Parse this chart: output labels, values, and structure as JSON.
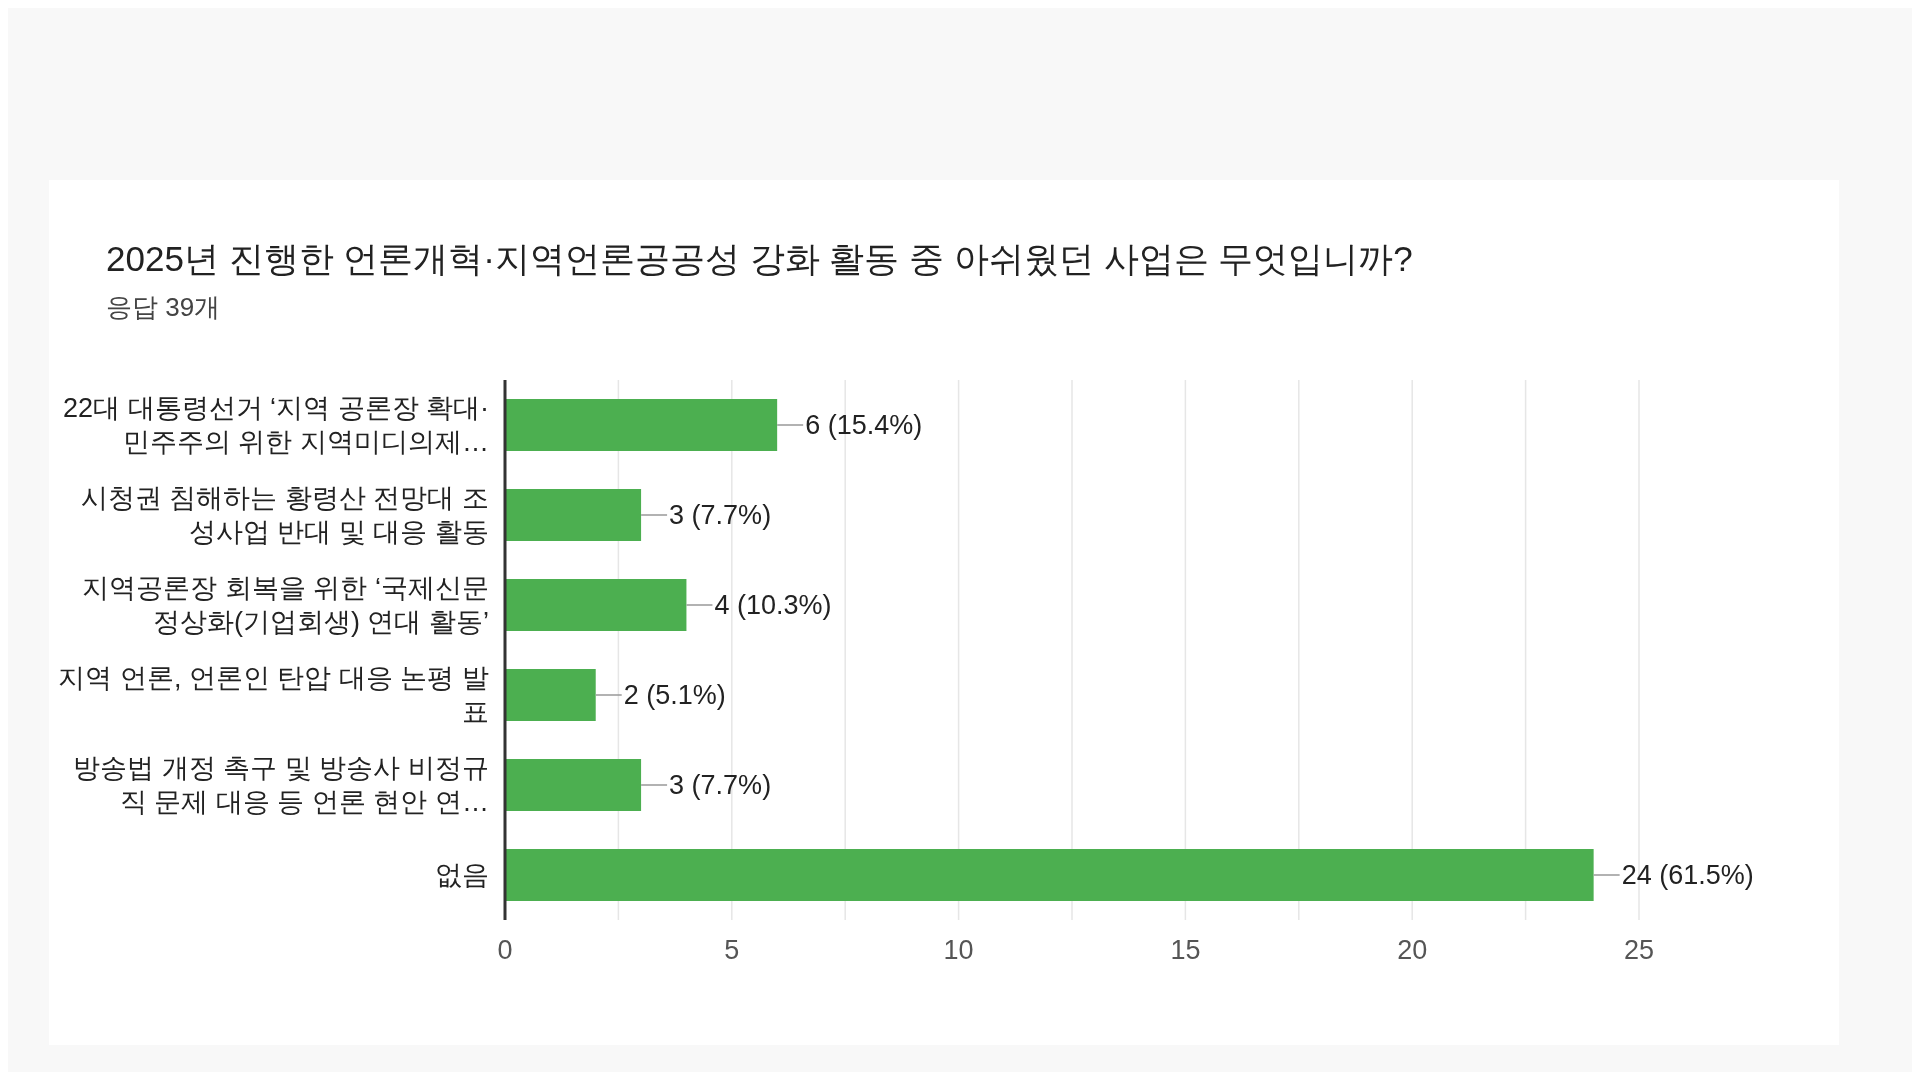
{
  "chart_data": {
    "type": "bar",
    "orientation": "horizontal",
    "title": "2025년 진행한 언론개혁·지역언론공공성 강화 활동 중 아쉬웠던 사업은 무엇입니까?",
    "subtitle": "응답 39개",
    "categories": [
      "22대 대통령선거 ‘지역 공론장 확대·민주주의 위한 지역미디의제…",
      "시청권 침해하는 황령산 전망대 조성사업 반대 및 대응 활동",
      "지역공론장 회복을 위한 ‘국제신문 정상화(기업회생) 연대 활동’",
      "지역 언론, 언론인 탄압 대응 논평 발표",
      "방송법 개정 촉구 및 방송사 비정규직 문제 대응 등 언론 현안 연…",
      "없음"
    ],
    "values": [
      6,
      3,
      4,
      2,
      3,
      24
    ],
    "value_labels": [
      "6 (15.4%)",
      "3 (7.7%)",
      "4 (10.3%)",
      "2 (5.1%)",
      "3 (7.7%)",
      "24 (61.5%)"
    ],
    "color": "#4caf50",
    "xlim": [
      0,
      25
    ],
    "xticks": [
      0,
      {
        "value": 2.5,
        "label": null
      },
      5,
      {
        "value": 7.5,
        "label": null
      },
      10,
      {
        "value": 12.5,
        "label": null
      },
      15,
      {
        "value": 17.5,
        "label": null
      },
      20,
      {
        "value": 22.5,
        "label": null
      },
      25
    ],
    "grid": "x",
    "legend": false
  }
}
